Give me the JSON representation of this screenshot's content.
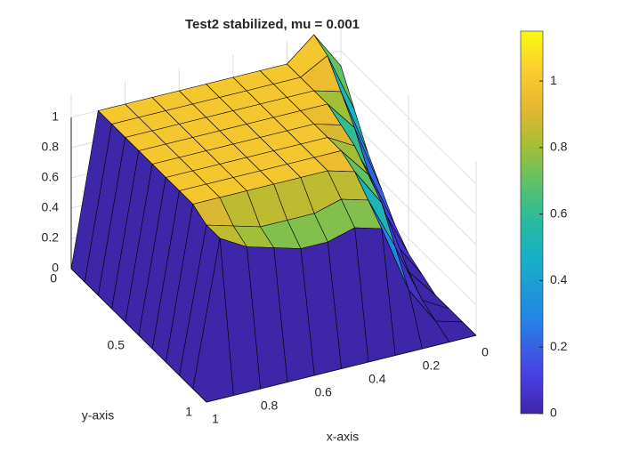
{
  "chart_data": {
    "type": "surface",
    "title": "Test2 stabilized, mu = 0.001",
    "xlabel": "x-axis",
    "ylabel": "y-axis",
    "x": [
      0,
      0.1,
      0.2,
      0.3,
      0.4,
      0.5,
      0.6,
      0.7,
      0.8,
      0.9,
      1
    ],
    "y": [
      0,
      0.1,
      0.2,
      0.3,
      0.4,
      0.5,
      0.6,
      0.7,
      0.8,
      0.9,
      1
    ],
    "z": [
      [
        0.9,
        1.15,
        1,
        1,
        1,
        1,
        1,
        1,
        1,
        1,
        0
      ],
      [
        0.7,
        1.1,
        1,
        1,
        1,
        1,
        1,
        1,
        1,
        1,
        0
      ],
      [
        0.5,
        0.95,
        1,
        1,
        1,
        1,
        1,
        1,
        1,
        1,
        0
      ],
      [
        0.35,
        0.8,
        1,
        1,
        1,
        1,
        1,
        1,
        1,
        1,
        0
      ],
      [
        0.2,
        0.6,
        0.95,
        1,
        1,
        1,
        1,
        1,
        1,
        1,
        0
      ],
      [
        0.1,
        0.45,
        0.9,
        1,
        1,
        1,
        1,
        1,
        1,
        1,
        0
      ],
      [
        0.05,
        0.3,
        0.8,
        1,
        1,
        1,
        1,
        1,
        1,
        1,
        0
      ],
      [
        0,
        0.2,
        0.7,
        0.95,
        1,
        1,
        1,
        1,
        1,
        1,
        0
      ],
      [
        0,
        0.1,
        0.5,
        0.85,
        0.9,
        0.85,
        0.85,
        0.85,
        0.9,
        0.95,
        0
      ],
      [
        0,
        0.05,
        0.3,
        0.75,
        0.8,
        0.75,
        0.75,
        0.8,
        0.85,
        0.95,
        0
      ],
      [
        0,
        0,
        0,
        0,
        0,
        0,
        0,
        0,
        0,
        0,
        0
      ]
    ],
    "xlim": [
      0,
      1
    ],
    "ylim": [
      0,
      1
    ],
    "zlim": [
      0,
      1.15
    ],
    "xticks": [
      0,
      0.2,
      0.4,
      0.6,
      0.8,
      1
    ],
    "yticks": [
      0,
      0.5,
      1
    ],
    "zticks": [
      0,
      0.2,
      0.4,
      0.6,
      0.8,
      1
    ],
    "grid": true,
    "colormap": "parula",
    "clim": [
      0,
      1.15
    ],
    "colorbar_ticks": [
      0,
      0.2,
      0.4,
      0.6,
      0.8,
      1
    ]
  }
}
